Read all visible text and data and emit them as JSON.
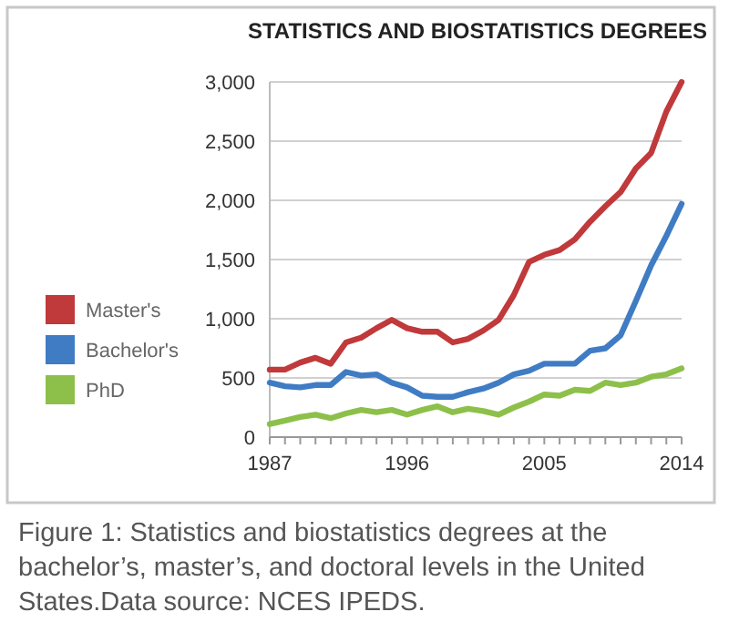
{
  "chart_data": {
    "type": "line",
    "title": "STATISTICS AND BIOSTATISTICS DEGREES",
    "x": [
      1987,
      1988,
      1989,
      1990,
      1991,
      1992,
      1993,
      1994,
      1995,
      1996,
      1997,
      1998,
      1999,
      2000,
      2001,
      2002,
      2003,
      2004,
      2005,
      2006,
      2007,
      2008,
      2009,
      2010,
      2011,
      2012,
      2013,
      2014
    ],
    "series": [
      {
        "name": "Master's",
        "color": "#c0393b",
        "values": [
          570,
          570,
          630,
          670,
          620,
          800,
          840,
          920,
          990,
          920,
          890,
          890,
          800,
          830,
          900,
          990,
          1200,
          1480,
          1540,
          1580,
          1670,
          1820,
          1950,
          2070,
          2270,
          2400,
          2750,
          3000
        ]
      },
      {
        "name": "Bachelor's",
        "color": "#3f7cc4",
        "values": [
          460,
          430,
          420,
          440,
          440,
          550,
          520,
          530,
          460,
          420,
          350,
          340,
          340,
          380,
          410,
          460,
          530,
          560,
          620,
          620,
          620,
          730,
          750,
          860,
          1150,
          1450,
          1700,
          1970
        ]
      },
      {
        "name": "PhD",
        "color": "#8dc04a",
        "values": [
          110,
          140,
          170,
          190,
          160,
          200,
          230,
          210,
          230,
          190,
          230,
          260,
          210,
          240,
          220,
          190,
          250,
          300,
          360,
          350,
          400,
          390,
          460,
          440,
          460,
          510,
          530,
          580
        ]
      }
    ],
    "xlim": [
      1987,
      2014
    ],
    "xticks": [
      1987,
      {
        "value": 1988,
        "label": null
      },
      {
        "value": 1989,
        "label": null
      },
      {
        "value": 1990,
        "label": null
      },
      {
        "value": 1991,
        "label": null
      },
      {
        "value": 1992,
        "label": null
      },
      {
        "value": 1993,
        "label": null
      },
      {
        "value": 1994,
        "label": null
      },
      {
        "value": 1995,
        "label": null
      },
      1996,
      {
        "value": 1997,
        "label": null
      },
      {
        "value": 1998,
        "label": null
      },
      {
        "value": 1999,
        "label": null
      },
      {
        "value": 2000,
        "label": null
      },
      {
        "value": 2001,
        "label": null
      },
      {
        "value": 2002,
        "label": null
      },
      {
        "value": 2003,
        "label": null
      },
      {
        "value": 2004,
        "label": null
      },
      2005,
      {
        "value": 2006,
        "label": null
      },
      {
        "value": 2007,
        "label": null
      },
      {
        "value": 2008,
        "label": null
      },
      {
        "value": 2009,
        "label": null
      },
      {
        "value": 2010,
        "label": null
      },
      {
        "value": 2011,
        "label": null
      },
      {
        "value": 2012,
        "label": null
      },
      {
        "value": 2013,
        "label": null
      },
      2014
    ],
    "ylim": [
      0,
      3000
    ],
    "yticks": [
      {
        "value": 0,
        "label": "0"
      },
      {
        "value": 500,
        "label": "500"
      },
      {
        "value": 1000,
        "label": "1,000"
      },
      {
        "value": 1500,
        "label": "1,500"
      },
      {
        "value": 2000,
        "label": "2,000"
      },
      {
        "value": 2500,
        "label": "2,500"
      },
      {
        "value": 3000,
        "label": "3,000"
      }
    ],
    "grid": "y",
    "legend": "left",
    "marker": "none",
    "line_style": "solid",
    "annotations": [
      "Figure 1: Statistics and biostatistics degrees at the bachelor’s, master’s, and doctoral levels in the United States.Data source: NCES IPEDS."
    ]
  }
}
